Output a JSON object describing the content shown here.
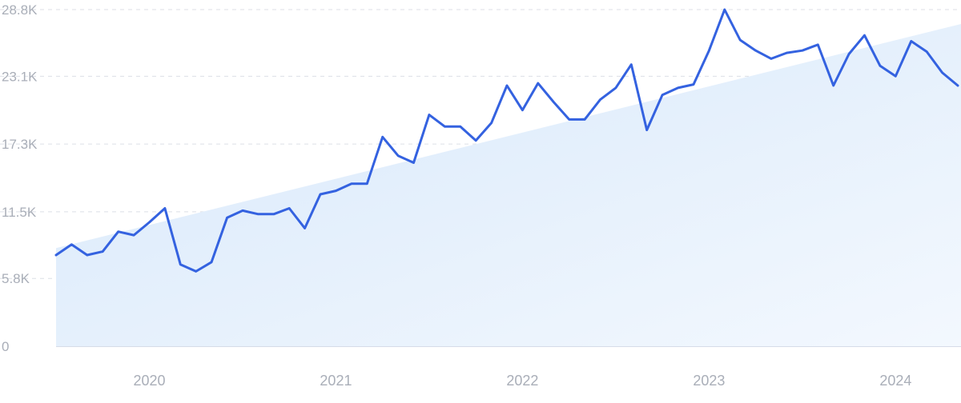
{
  "chart_data": {
    "type": "line",
    "title": "",
    "xlabel": "",
    "ylabel": "",
    "ylim": [
      0,
      28800
    ],
    "y_ticks": [
      {
        "value": 0,
        "label": "0"
      },
      {
        "value": 5800,
        "label": "5.8K"
      },
      {
        "value": 11500,
        "label": "11.5K"
      },
      {
        "value": 17300,
        "label": "17.3K"
      },
      {
        "value": 23100,
        "label": "23.1K"
      },
      {
        "value": 28800,
        "label": "28.8K"
      }
    ],
    "x_range": [
      "2019-07",
      "2024-05"
    ],
    "x_ticks": [
      {
        "value": "2020-01",
        "label": "2020"
      },
      {
        "value": "2021-01",
        "label": "2021"
      },
      {
        "value": "2022-01",
        "label": "2022"
      },
      {
        "value": "2023-01",
        "label": "2023"
      },
      {
        "value": "2024-01",
        "label": "2024"
      }
    ],
    "grid": true,
    "legend": "none",
    "series": [
      {
        "x": [
          "2019-07",
          "2019-08",
          "2019-09",
          "2019-10",
          "2019-11",
          "2019-12",
          "2020-01",
          "2020-02",
          "2020-03",
          "2020-04",
          "2020-05",
          "2020-06",
          "2020-07",
          "2020-08",
          "2020-09",
          "2020-10",
          "2020-11",
          "2020-12",
          "2021-01",
          "2021-02",
          "2021-03",
          "2021-04",
          "2021-05",
          "2021-06",
          "2021-07",
          "2021-08",
          "2021-09",
          "2021-10",
          "2021-11",
          "2021-12",
          "2022-01",
          "2022-02",
          "2022-03",
          "2022-04",
          "2022-05",
          "2022-06",
          "2022-07",
          "2022-08",
          "2022-09",
          "2022-10",
          "2022-11",
          "2022-12",
          "2023-01",
          "2023-02",
          "2023-03",
          "2023-04",
          "2023-05",
          "2023-06",
          "2023-07",
          "2023-08",
          "2023-09",
          "2023-10",
          "2023-11",
          "2023-12",
          "2024-01",
          "2024-02",
          "2024-03",
          "2024-04",
          "2024-05"
        ],
        "values": [
          7800,
          8700,
          7800,
          8100,
          9800,
          9500,
          10600,
          11800,
          7000,
          6400,
          7200,
          11000,
          11600,
          11300,
          11300,
          11800,
          10100,
          13000,
          13300,
          13900,
          13900,
          17900,
          16300,
          15700,
          19800,
          18800,
          18800,
          17600,
          19100,
          22300,
          20200,
          22500,
          20900,
          19400,
          19400,
          21100,
          22100,
          24100,
          18500,
          21500,
          22100,
          22400,
          25300,
          28800,
          26200,
          25300,
          24600,
          25100,
          25300,
          25800,
          22300,
          25000,
          26600,
          24000,
          23100,
          26100,
          25200,
          23400,
          22300
        ],
        "color": "#3462E0"
      }
    ],
    "trend": {
      "start": 8400,
      "end": 27500,
      "fill_top": "#D7E8FA",
      "fill_bottom": "#F3F8FE"
    }
  }
}
